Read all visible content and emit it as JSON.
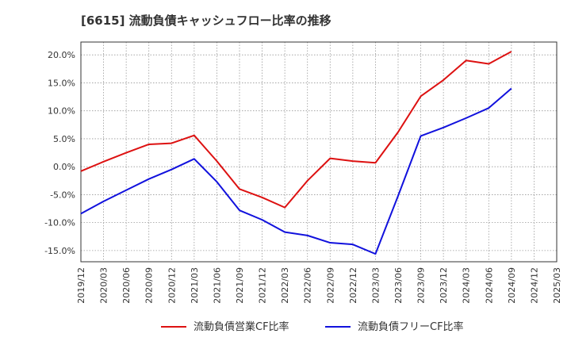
{
  "chart_data": {
    "type": "line",
    "title": "[6615]  流動負債キャッシュフロー比率の推移",
    "x": [
      "2019/12",
      "2020/03",
      "2020/06",
      "2020/09",
      "2020/12",
      "2021/03",
      "2021/06",
      "2021/09",
      "2021/12",
      "2022/03",
      "2022/06",
      "2022/09",
      "2022/12",
      "2023/03",
      "2023/06",
      "2023/09",
      "2023/12",
      "2024/03",
      "2024/06",
      "2024/09",
      "2024/12",
      "2025/03"
    ],
    "x_ticks": [
      "2019/12",
      "2020/03",
      "2020/06",
      "2020/09",
      "2020/12",
      "2021/03",
      "2021/06",
      "2021/09",
      "2021/12",
      "2022/03",
      "2022/06",
      "2022/09",
      "2022/12",
      "2023/03",
      "2023/06",
      "2023/09",
      "2023/12",
      "2024/03",
      "2024/06",
      "2024/09",
      "2024/12",
      "2025/03"
    ],
    "y_ticks": [
      20,
      15,
      10,
      5,
      0,
      -5,
      -10,
      -15
    ],
    "y_tick_labels": [
      "20.0%",
      "15.0%",
      "10.0%",
      "5.0%",
      "0.0%",
      "-5.0%",
      "-10.0%",
      "-15.0%"
    ],
    "ylim": [
      -17,
      22.3
    ],
    "grid": true,
    "legend_position": "bottom",
    "series": [
      {
        "name": "流動負債営業CF比率",
        "color": "#dd1111",
        "values": [
          -0.8,
          0.9,
          2.5,
          4.0,
          4.2,
          5.6,
          1.0,
          -4.0,
          -5.5,
          -7.3,
          -2.5,
          1.5,
          1.0,
          0.7,
          6.2,
          12.6,
          15.5,
          19.0,
          18.4,
          20.6,
          null,
          null
        ]
      },
      {
        "name": "流動負債フリーCF比率",
        "color": "#1111dd",
        "values": [
          -8.4,
          -6.2,
          -4.2,
          -2.2,
          -0.5,
          1.4,
          -2.7,
          -7.8,
          -9.5,
          -11.7,
          -12.3,
          -13.6,
          -13.9,
          -15.6,
          -5.2,
          5.5,
          7.0,
          8.7,
          10.5,
          14.0,
          null,
          null
        ]
      }
    ]
  }
}
